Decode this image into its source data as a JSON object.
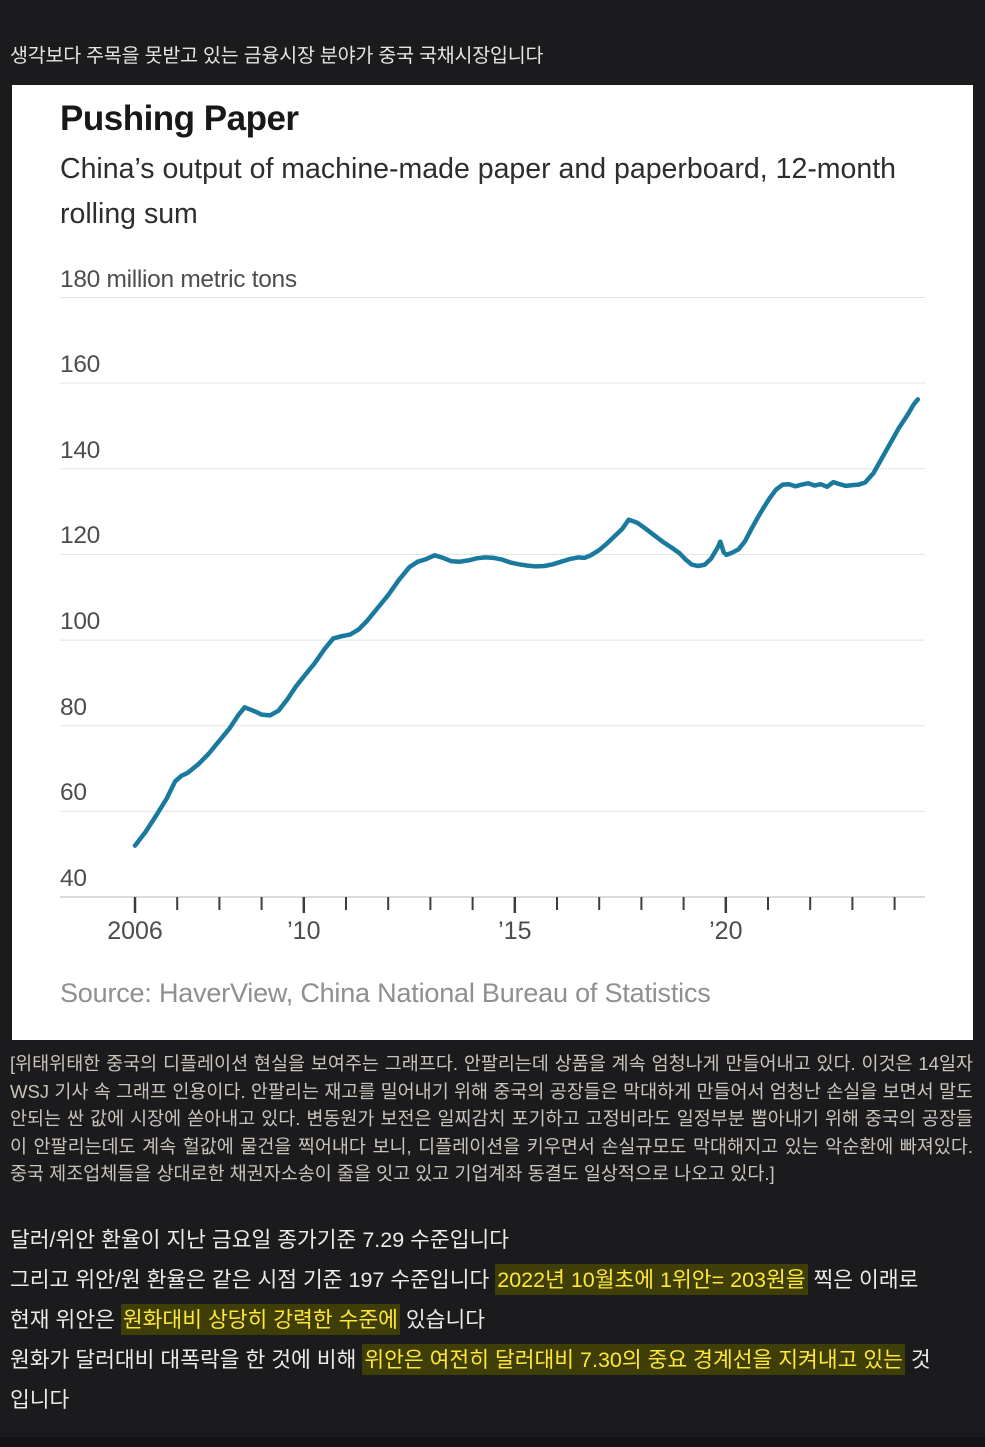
{
  "post": {
    "heading": "생각보다 주목을 못받고 있는 금융시장 분야가 중국 국채시장입니다"
  },
  "chart_data": {
    "type": "line",
    "title": "Pushing Paper",
    "subtitle": "China’s output of machine-made paper and paperboard, 12-month rolling sum",
    "source": "Source: HaverView, China National Bureau of Statistics",
    "ylabel": "million metric tons",
    "y_top_label": "180 million metric tons",
    "ylim": [
      40,
      180
    ],
    "y_ticks": [
      40,
      60,
      80,
      100,
      120,
      140,
      160,
      180
    ],
    "x_tick_years": [
      2006,
      2024
    ],
    "x_labels": {
      "2006": "2006",
      "2010": "’10",
      "2015": "’15",
      "2020": "’20"
    },
    "grid": "on",
    "legend": "none",
    "line_color": "#1a7a9e",
    "series": [
      {
        "name": "China machine-made paper and paperboard output, 12-month rolling sum (million metric tons)",
        "points": [
          [
            2006.0,
            52
          ],
          [
            2006.25,
            55.2
          ],
          [
            2006.5,
            59
          ],
          [
            2006.75,
            63
          ],
          [
            2006.95,
            67
          ],
          [
            2007.1,
            68.3
          ],
          [
            2007.25,
            69
          ],
          [
            2007.5,
            71
          ],
          [
            2007.75,
            73.5
          ],
          [
            2008.0,
            76.5
          ],
          [
            2008.25,
            79.5
          ],
          [
            2008.45,
            82.5
          ],
          [
            2008.6,
            84.3
          ],
          [
            2008.8,
            83.5
          ],
          [
            2009.0,
            82.6
          ],
          [
            2009.2,
            82.4
          ],
          [
            2009.4,
            83.5
          ],
          [
            2009.6,
            86
          ],
          [
            2009.8,
            89
          ],
          [
            2010.0,
            91.5
          ],
          [
            2010.25,
            94.5
          ],
          [
            2010.5,
            98
          ],
          [
            2010.7,
            100.4
          ],
          [
            2010.9,
            100.9
          ],
          [
            2011.1,
            101.3
          ],
          [
            2011.3,
            102.5
          ],
          [
            2011.5,
            104.5
          ],
          [
            2011.75,
            107.5
          ],
          [
            2012.0,
            110.5
          ],
          [
            2012.25,
            114
          ],
          [
            2012.5,
            117
          ],
          [
            2012.7,
            118.3
          ],
          [
            2012.9,
            118.9
          ],
          [
            2013.1,
            119.8
          ],
          [
            2013.3,
            119.2
          ],
          [
            2013.5,
            118.4
          ],
          [
            2013.7,
            118.3
          ],
          [
            2013.9,
            118.6
          ],
          [
            2014.1,
            119.1
          ],
          [
            2014.3,
            119.3
          ],
          [
            2014.5,
            119.2
          ],
          [
            2014.7,
            118.8
          ],
          [
            2014.9,
            118.1
          ],
          [
            2015.1,
            117.7
          ],
          [
            2015.3,
            117.4
          ],
          [
            2015.5,
            117.2
          ],
          [
            2015.7,
            117.3
          ],
          [
            2015.9,
            117.7
          ],
          [
            2016.1,
            118.3
          ],
          [
            2016.3,
            118.9
          ],
          [
            2016.5,
            119.3
          ],
          [
            2016.65,
            119.2
          ],
          [
            2016.8,
            119.8
          ],
          [
            2017.0,
            121
          ],
          [
            2017.2,
            122.7
          ],
          [
            2017.4,
            124.6
          ],
          [
            2017.55,
            126
          ],
          [
            2017.7,
            128.1
          ],
          [
            2017.9,
            127.4
          ],
          [
            2018.1,
            126
          ],
          [
            2018.3,
            124.5
          ],
          [
            2018.5,
            123
          ],
          [
            2018.7,
            121.7
          ],
          [
            2018.9,
            120.3
          ],
          [
            2019.05,
            118.8
          ],
          [
            2019.2,
            117.6
          ],
          [
            2019.35,
            117.3
          ],
          [
            2019.5,
            117.6
          ],
          [
            2019.65,
            119
          ],
          [
            2019.8,
            121.5
          ],
          [
            2019.87,
            123
          ],
          [
            2019.95,
            120.5
          ],
          [
            2020.02,
            119.9
          ],
          [
            2020.15,
            120.4
          ],
          [
            2020.3,
            121.2
          ],
          [
            2020.45,
            123
          ],
          [
            2020.6,
            125.8
          ],
          [
            2020.75,
            128.5
          ],
          [
            2020.9,
            131
          ],
          [
            2021.05,
            133.3
          ],
          [
            2021.2,
            135.2
          ],
          [
            2021.35,
            136.3
          ],
          [
            2021.5,
            136.4
          ],
          [
            2021.65,
            135.9
          ],
          [
            2021.8,
            136.3
          ],
          [
            2021.95,
            136.6
          ],
          [
            2022.1,
            136.1
          ],
          [
            2022.25,
            136.4
          ],
          [
            2022.4,
            135.8
          ],
          [
            2022.55,
            136.9
          ],
          [
            2022.7,
            136.4
          ],
          [
            2022.85,
            136.0
          ],
          [
            2023.0,
            136.2
          ],
          [
            2023.15,
            136.3
          ],
          [
            2023.3,
            136.8
          ],
          [
            2023.5,
            139
          ],
          [
            2023.7,
            142.5
          ],
          [
            2023.9,
            146
          ],
          [
            2024.1,
            149.5
          ],
          [
            2024.3,
            152.5
          ],
          [
            2024.45,
            155
          ],
          [
            2024.55,
            156.2
          ]
        ]
      }
    ]
  },
  "commentary": {
    "bracket_note": "[위태위태한 중국의 디플레이션 현실을 보여주는 그래프다. 안팔리는데 상품을 계속 엄청나게 만들어내고 있다. 이것은 14일자 WSJ 기사 속 그래프 인용이다. 안팔리는 재고를 밀어내기 위해 중국의 공장들은 막대하게 만들어서 엄청난 손실을 보면서 말도 안되는 싼 값에 시장에 쏟아내고 있다. 변동원가 보전은 일찌감치 포기하고 고정비라도 일정부분 뽑아내기 위해 중국의 공장들이 안팔리는데도 계속 헐값에 물건을 찍어내다 보니, 디플레이션을 키우면서 손실규모도 막대해지고 있는 악순환에 빠져있다. 중국 제조업체들을 상대로한 채권자소송이 줄을 잇고 있고 기업계좌 동결도 일상적으로 나오고 있다.]"
  },
  "rates": {
    "lines": [
      {
        "parts": [
          {
            "t": "달러/위안 환율이 지난 금요일 종가기준 7.29 수준입니다",
            "hl": false
          }
        ]
      },
      {
        "parts": [
          {
            "t": "그리고 위안/원 환율은 같은 시점 기준 197 수준입니다 ",
            "hl": false
          },
          {
            "t": "2022년 10월초에 1위안= 203원을",
            "hl": true
          },
          {
            "t": " 찍은 이래로",
            "hl": false
          }
        ]
      },
      {
        "parts": [
          {
            "t": "현재 위안은 ",
            "hl": false
          },
          {
            "t": "원화대비 상당히 강력한 수준에",
            "hl": true
          },
          {
            "t": " 있습니다",
            "hl": false
          }
        ]
      },
      {
        "parts": [
          {
            "t": "원화가 달러대비 대폭락을 한 것에 비해 ",
            "hl": false
          },
          {
            "t": "위안은 여전히 달러대비 7.30의 중요 경계선을 지켜내고 있는",
            "hl": true
          },
          {
            "t": " 것",
            "hl": false
          }
        ]
      },
      {
        "parts": [
          {
            "t": "입니다",
            "hl": false
          }
        ]
      }
    ]
  },
  "colors": {
    "page_bg": "#1b1b1d",
    "panel_bg": "#ffffff",
    "line": "#1a7a9e",
    "grid": "#e3e3e3",
    "axis": "#cfcfcf",
    "tick": "#3d3d3d",
    "highlight_bg": "#3f3e07",
    "highlight_text": "#ffe73b"
  }
}
